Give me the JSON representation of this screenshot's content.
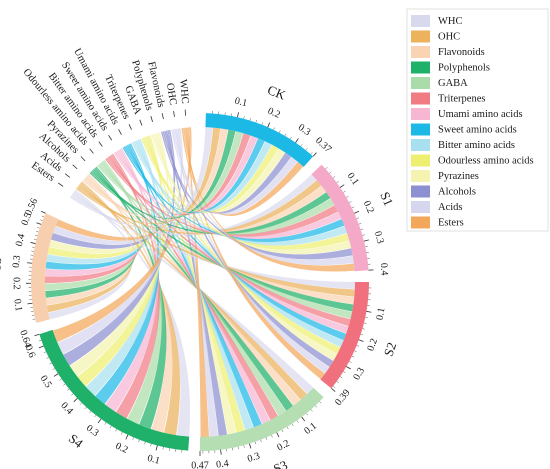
{
  "chart_data": {
    "type": "chord",
    "title": "",
    "sectors": [
      {
        "name": "CK",
        "color": "#1CB9E6",
        "max": 0.37,
        "ticks": [
          0.1,
          0.2,
          0.3
        ],
        "end_label": "0.37"
      },
      {
        "name": "S1",
        "color": "#F5A9C9",
        "max": 0.4,
        "ticks": [
          0.1,
          0.2,
          0.3
        ],
        "end_label": "0.4"
      },
      {
        "name": "S2",
        "color": "#F0707D",
        "max": 0.39,
        "ticks": [
          0.1,
          0.2,
          0.3
        ],
        "end_label": "0.39"
      },
      {
        "name": "S3",
        "color": "#B5DEB2",
        "max": 0.47,
        "ticks": [
          0.1,
          0.2,
          0.3,
          0.4
        ],
        "end_label": "0.47"
      },
      {
        "name": "S4",
        "color": "#1FB06A",
        "max": 0.64,
        "ticks": [
          0.1,
          0.2,
          0.3,
          0.4,
          0.5,
          0.6
        ],
        "end_label": "0.64"
      },
      {
        "name": "S5",
        "color": "#F8CFAE",
        "max": 0.56,
        "ticks": [
          0.1,
          0.2,
          0.3,
          0.4,
          0.5
        ],
        "end_label": "0.56"
      }
    ],
    "categories": [
      {
        "name": "WHC",
        "color": "#D9D9EE"
      },
      {
        "name": "OHC",
        "color": "#ECB25C"
      },
      {
        "name": "Flavonoids",
        "color": "#F9D3B2"
      },
      {
        "name": "Polyphenols",
        "color": "#1FB06A"
      },
      {
        "name": "GABA",
        "color": "#A9DCA8"
      },
      {
        "name": "Triterpenes",
        "color": "#F07B83"
      },
      {
        "name": "Umami amino acids",
        "color": "#F7B6D2"
      },
      {
        "name": "Sweet amino acids",
        "color": "#1CB9E6"
      },
      {
        "name": "Bitter amino acids",
        "color": "#A8E0F0"
      },
      {
        "name": "Odourless  amino acids",
        "color": "#EEEE70"
      },
      {
        "name": "Pyrazines",
        "color": "#F4F4B0"
      },
      {
        "name": "Alcohols",
        "color": "#8C8FD0"
      },
      {
        "name": "Acids",
        "color": "#D6D6EF"
      },
      {
        "name": "Esters",
        "color": "#F2A75A"
      }
    ]
  }
}
